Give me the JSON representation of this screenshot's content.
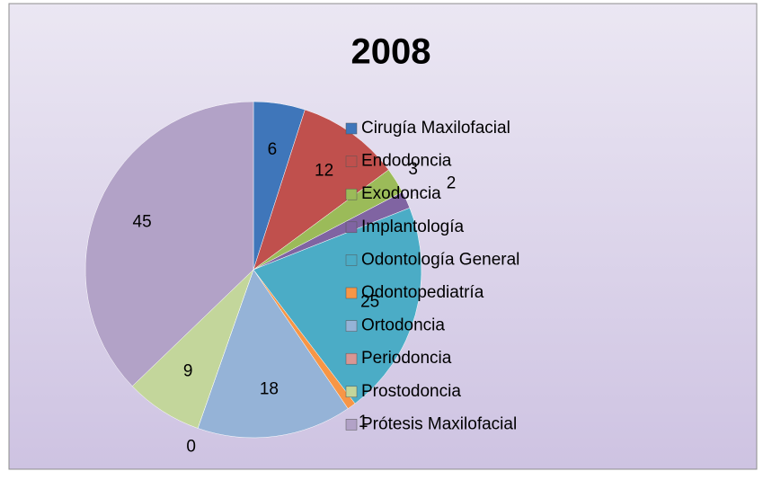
{
  "chart_data": {
    "type": "pie",
    "title": "2008",
    "categories": [
      "Cirugía Maxilofacial",
      "Endodoncia",
      "Exodoncia",
      "Implantología",
      "Odontología General",
      "Odontopediatría",
      "Ortodoncia",
      "Periodoncia",
      "Prostodoncia",
      "Prótesis Maxilofacial"
    ],
    "values": [
      6,
      12,
      3,
      2,
      25,
      1,
      18,
      0,
      9,
      45
    ],
    "colors": [
      "#3f76ba",
      "#c0504d",
      "#9bbb59",
      "#8064a2",
      "#4bacc6",
      "#f79646",
      "#95b3d7",
      "#d99694",
      "#c3d69b",
      "#b2a2c7"
    ],
    "legend": "right"
  }
}
